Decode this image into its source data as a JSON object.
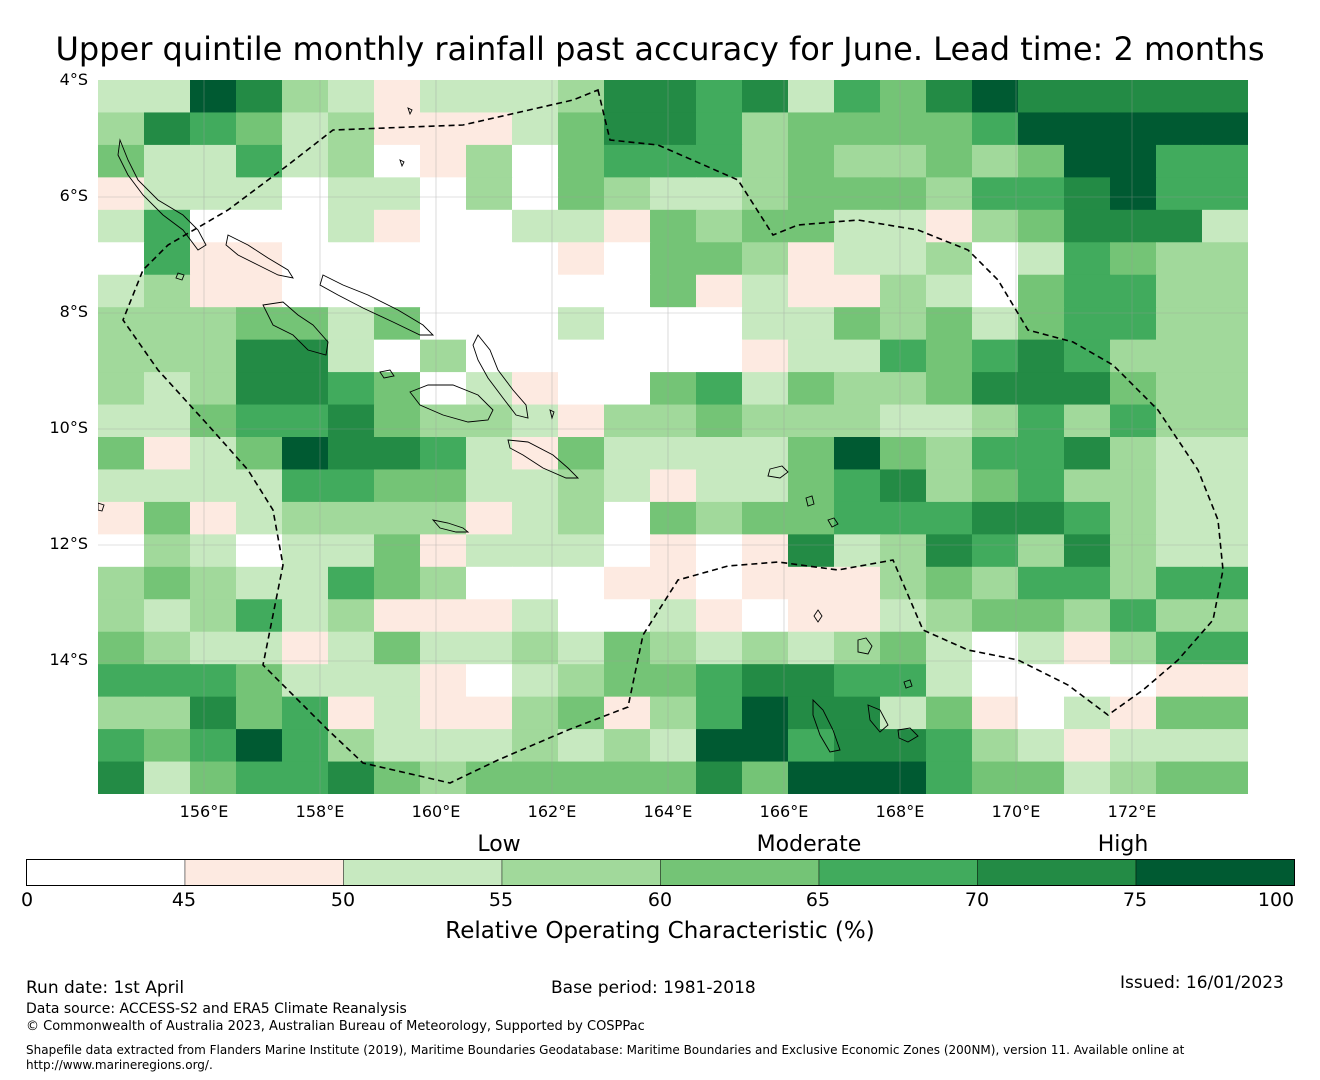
{
  "title": "Upper quintile monthly rainfall past accuracy for June. Lead time: 2 months",
  "map": {
    "lat_labels": [
      "4°S",
      "6°S",
      "8°S",
      "10°S",
      "12°S",
      "14°S"
    ],
    "lon_labels": [
      "156°E",
      "158°E",
      "160°E",
      "162°E",
      "164°E",
      "166°E",
      "168°E",
      "170°E",
      "172°E"
    ],
    "region_boundary": "Solomon Islands EEZ (dashed outline)",
    "grid": [
      [
        2,
        2,
        7,
        6,
        3,
        2,
        1,
        2,
        2,
        2,
        3,
        6,
        6,
        5,
        6,
        2,
        5,
        4,
        6,
        7,
        6,
        6,
        6,
        6
      ],
      [
        3,
        6,
        5,
        4,
        2,
        3,
        1,
        1,
        1,
        2,
        4,
        6,
        6,
        5,
        3,
        4,
        4,
        4,
        4,
        5,
        7,
        7,
        7,
        7
      ],
      [
        4,
        2,
        2,
        5,
        2,
        3,
        0,
        1,
        3,
        0,
        4,
        5,
        5,
        5,
        3,
        4,
        3,
        3,
        4,
        3,
        4,
        7,
        7,
        5,
        5
      ],
      [
        1,
        2,
        2,
        2,
        0,
        2,
        2,
        0,
        3,
        0,
        4,
        3,
        2,
        2,
        3,
        4,
        4,
        4,
        3,
        5,
        5,
        6,
        7,
        5
      ],
      [
        2,
        5,
        0,
        0,
        0,
        2,
        1,
        0,
        0,
        2,
        2,
        1,
        4,
        3,
        4,
        4,
        2,
        2,
        1,
        3,
        4,
        6,
        6,
        6,
        2
      ],
      [
        0,
        5,
        1,
        1,
        0,
        0,
        0,
        0,
        0,
        0,
        1,
        0,
        4,
        4,
        3,
        1,
        2,
        2,
        3,
        0,
        2,
        5,
        4,
        3
      ],
      [
        2,
        3,
        1,
        1,
        0,
        0,
        0,
        0,
        0,
        0,
        0,
        0,
        4,
        1,
        2,
        1,
        1,
        3,
        2,
        0,
        4,
        5,
        5,
        3
      ],
      [
        3,
        3,
        3,
        4,
        4,
        2,
        4,
        0,
        0,
        0,
        2,
        0,
        0,
        0,
        2,
        2,
        4,
        3,
        4,
        2,
        4,
        5,
        5,
        3
      ],
      [
        3,
        3,
        3,
        6,
        6,
        2,
        0,
        3,
        0,
        0,
        0,
        0,
        0,
        0,
        1,
        2,
        2,
        5,
        4,
        5,
        6,
        5,
        3,
        3
      ],
      [
        3,
        2,
        3,
        6,
        6,
        5,
        4,
        0,
        2,
        1,
        0,
        0,
        4,
        5,
        2,
        4,
        3,
        3,
        4,
        6,
        6,
        6,
        4,
        3
      ],
      [
        2,
        2,
        4,
        5,
        5,
        6,
        4,
        3,
        3,
        2,
        1,
        3,
        3,
        4,
        3,
        3,
        3,
        2,
        2,
        3,
        5,
        3,
        5,
        3
      ],
      [
        4,
        1,
        2,
        4,
        7,
        6,
        6,
        5,
        2,
        1,
        4,
        2,
        2,
        2,
        2,
        4,
        7,
        4,
        3,
        5,
        5,
        6,
        3,
        2
      ],
      [
        2,
        2,
        2,
        2,
        5,
        5,
        4,
        4,
        2,
        2,
        3,
        2,
        1,
        2,
        2,
        4,
        5,
        6,
        3,
        4,
        5,
        3,
        3,
        2
      ],
      [
        1,
        4,
        1,
        2,
        3,
        3,
        3,
        3,
        1,
        2,
        3,
        0,
        4,
        3,
        4,
        4,
        5,
        5,
        5,
        6,
        6,
        5,
        3,
        2
      ],
      [
        0,
        3,
        2,
        0,
        2,
        2,
        4,
        1,
        2,
        2,
        2,
        0,
        1,
        0,
        1,
        6,
        2,
        3,
        6,
        5,
        3,
        6,
        3,
        2
      ],
      [
        3,
        4,
        3,
        2,
        2,
        5,
        4,
        3,
        0,
        0,
        0,
        1,
        1,
        0,
        1,
        1,
        1,
        3,
        4,
        3,
        5,
        5,
        3,
        5
      ],
      [
        3,
        2,
        3,
        5,
        2,
        3,
        1,
        1,
        1,
        2,
        0,
        0,
        2,
        1,
        0,
        1,
        1,
        2,
        3,
        4,
        4,
        3,
        5,
        3
      ],
      [
        4,
        3,
        2,
        2,
        1,
        2,
        4,
        2,
        2,
        3,
        2,
        4,
        3,
        2,
        3,
        2,
        3,
        4,
        2,
        0,
        2,
        1,
        3,
        5
      ],
      [
        5,
        5,
        5,
        4,
        2,
        2,
        2,
        1,
        0,
        2,
        3,
        4,
        4,
        5,
        6,
        6,
        5,
        5,
        2,
        0,
        0,
        0,
        0,
        1
      ],
      [
        3,
        3,
        6,
        4,
        5,
        1,
        2,
        1,
        1,
        3,
        4,
        1,
        3,
        5,
        7,
        6,
        6,
        2,
        4,
        1,
        0,
        2,
        1,
        4
      ],
      [
        5,
        4,
        5,
        7,
        5,
        3,
        2,
        2,
        2,
        3,
        2,
        3,
        2,
        7,
        7,
        5,
        6,
        6,
        5,
        3,
        2,
        1,
        2
      ],
      [
        6,
        2,
        4,
        5,
        5,
        6,
        4,
        3,
        4,
        4,
        4,
        4,
        4,
        6,
        4,
        7,
        7,
        7,
        5,
        4,
        4,
        2,
        3,
        4
      ]
    ]
  },
  "colorbar": {
    "colors": [
      "#ffffff",
      "#fdeae1",
      "#c7e9c0",
      "#a1d99b",
      "#74c476",
      "#41ab5d",
      "#238b45",
      "#005a32"
    ],
    "ticks": [
      "0",
      "45",
      "50",
      "55",
      "60",
      "65",
      "70",
      "75",
      "100"
    ],
    "category_low": "Low",
    "category_moderate": "Moderate",
    "category_high": "High",
    "title": "Relative Operating Characteristic (%)"
  },
  "footer": {
    "run_date": "Run date: 1st April",
    "base_period": "Base period: 1981-2018",
    "issued": "Issued: 16/01/2023",
    "data_source": "Data source: ACCESS-S2 and ERA5 Climate Reanalysis",
    "copyright": "© Commonwealth of Australia 2023, Australian Bureau of Meteorology, Supported by COSPPac",
    "shapefile_line1": "Shapefile data extracted from Flanders Marine Institute (2019), Maritime Boundaries Geodatabase: Maritime Boundaries and Exclusive Economic Zones (200NM), version 11. Available online at",
    "shapefile_line2": "http://www.marineregions.org/."
  }
}
